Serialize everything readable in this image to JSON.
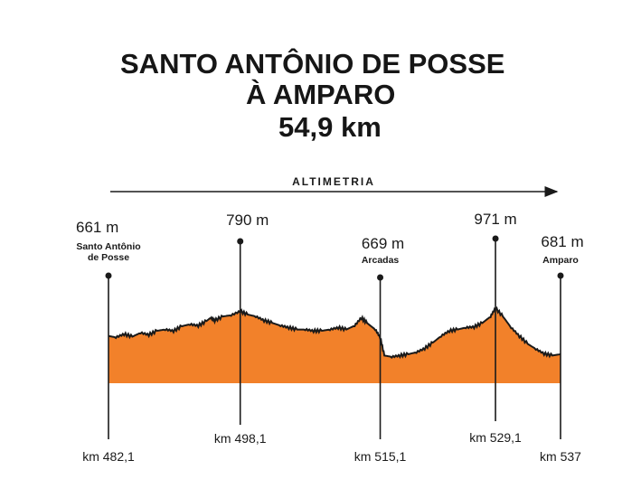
{
  "title": {
    "line1": "SANTO ANTÔNIO DE POSSE",
    "line2": "À AMPARO",
    "line3": "54,9 km"
  },
  "chart_data": {
    "type": "area",
    "title": "ALTIMETRIA",
    "x_unit": "km",
    "y_unit": "m",
    "waypoints": [
      {
        "km": 482.1,
        "km_label": "km 482,1",
        "altitude": 661,
        "altitude_label": "661 m",
        "place": "Santo Antônio de Posse"
      },
      {
        "km": 498.1,
        "km_label": "km 498,1",
        "altitude": 790,
        "altitude_label": "790 m",
        "place": ""
      },
      {
        "km": 515.1,
        "km_label": "km 515,1",
        "altitude": 669,
        "altitude_label": "669 m",
        "place": "Arcadas"
      },
      {
        "km": 529.1,
        "km_label": "km 529,1",
        "altitude": 971,
        "altitude_label": "971 m",
        "place": ""
      },
      {
        "km": 537,
        "km_label": "km 537",
        "altitude": 681,
        "altitude_label": "681 m",
        "place": "Amparo"
      }
    ],
    "profile": [
      [
        482.1,
        0.42
      ],
      [
        483.0,
        0.4
      ],
      [
        484.0,
        0.45
      ],
      [
        485.0,
        0.41
      ],
      [
        486.0,
        0.47
      ],
      [
        487.0,
        0.44
      ],
      [
        488.0,
        0.5
      ],
      [
        489.0,
        0.52
      ],
      [
        490.0,
        0.5
      ],
      [
        491.0,
        0.57
      ],
      [
        492.0,
        0.6
      ],
      [
        493.0,
        0.58
      ],
      [
        494.0,
        0.65
      ],
      [
        494.5,
        0.7
      ],
      [
        495.0,
        0.66
      ],
      [
        496.0,
        0.72
      ],
      [
        497.0,
        0.74
      ],
      [
        498.1,
        0.8
      ],
      [
        499.0,
        0.75
      ],
      [
        500.0,
        0.72
      ],
      [
        501.0,
        0.66
      ],
      [
        502.0,
        0.62
      ],
      [
        503.0,
        0.58
      ],
      [
        504.0,
        0.55
      ],
      [
        505.0,
        0.52
      ],
      [
        506.0,
        0.52
      ],
      [
        507.0,
        0.5
      ],
      [
        508.0,
        0.5
      ],
      [
        509.0,
        0.52
      ],
      [
        510.0,
        0.55
      ],
      [
        511.0,
        0.52
      ],
      [
        512.0,
        0.58
      ],
      [
        512.8,
        0.7
      ],
      [
        513.5,
        0.62
      ],
      [
        514.5,
        0.52
      ],
      [
        515.1,
        0.4
      ],
      [
        515.6,
        0.12
      ],
      [
        516.5,
        0.1
      ],
      [
        517.5,
        0.12
      ],
      [
        518.5,
        0.14
      ],
      [
        519.5,
        0.17
      ],
      [
        520.5,
        0.23
      ],
      [
        521.5,
        0.32
      ],
      [
        522.5,
        0.42
      ],
      [
        523.5,
        0.5
      ],
      [
        524.5,
        0.52
      ],
      [
        525.5,
        0.55
      ],
      [
        526.5,
        0.56
      ],
      [
        527.5,
        0.62
      ],
      [
        528.5,
        0.72
      ],
      [
        529.1,
        0.85
      ],
      [
        530.0,
        0.72
      ],
      [
        531.0,
        0.55
      ],
      [
        532.0,
        0.42
      ],
      [
        533.0,
        0.3
      ],
      [
        534.0,
        0.22
      ],
      [
        535.0,
        0.15
      ],
      [
        536.0,
        0.12
      ],
      [
        537.0,
        0.14
      ]
    ]
  }
}
